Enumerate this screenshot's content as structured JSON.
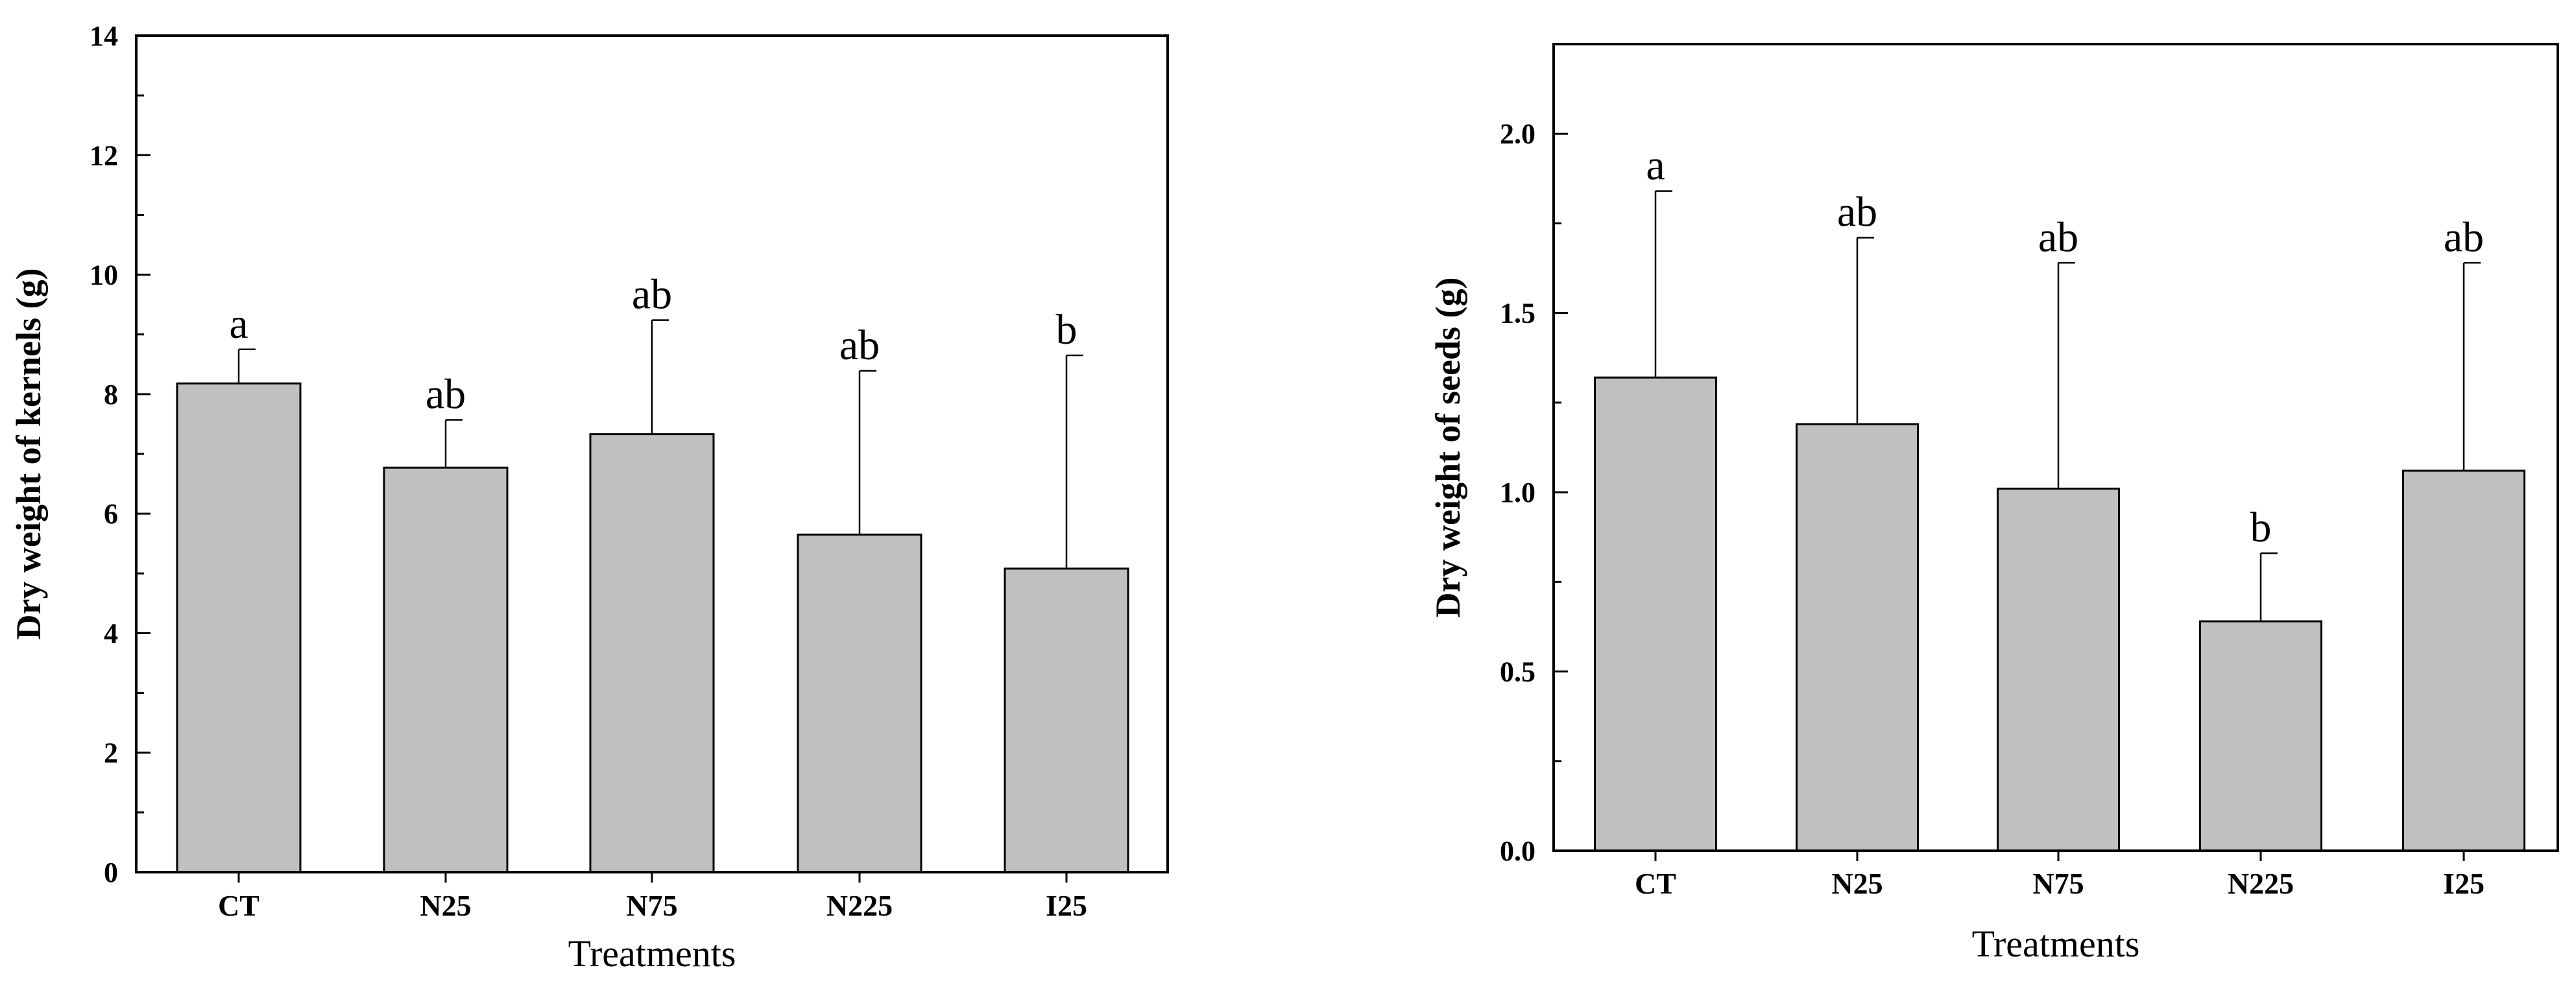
{
  "chart_data": [
    {
      "type": "bar",
      "categories": [
        "CT",
        "N25",
        "N75",
        "N225",
        "I25"
      ],
      "values": [
        8.18,
        6.77,
        7.33,
        5.65,
        5.08
      ],
      "error_upper": [
        8.75,
        7.57,
        9.24,
        8.39,
        8.65
      ],
      "significance": [
        "a",
        "ab",
        "ab",
        "ab",
        "b"
      ],
      "xlabel": "Treatments",
      "ylabel": "Dry weight of kernels (g)",
      "ylim": [
        0,
        14
      ],
      "yticks": [
        0,
        2,
        4,
        6,
        8,
        10,
        12,
        14
      ],
      "ytick_labels": [
        "0",
        "2",
        "4",
        "6",
        "8",
        "10",
        "12",
        "14"
      ],
      "minor_ticks": true,
      "grid": false,
      "bar_color": "#c0c0c0"
    },
    {
      "type": "bar",
      "categories": [
        "CT",
        "N25",
        "N75",
        "N225",
        "I25"
      ],
      "values": [
        1.32,
        1.19,
        1.01,
        0.64,
        1.06
      ],
      "error_upper": [
        1.84,
        1.71,
        1.64,
        0.83,
        1.64
      ],
      "significance": [
        "a",
        "ab",
        "ab",
        "b",
        "ab"
      ],
      "xlabel": "Treatments",
      "ylabel": "Dry weight of seeds (g)",
      "ylim": [
        0,
        2.25
      ],
      "yticks": [
        0,
        0.5,
        1.0,
        1.5,
        2.0
      ],
      "ytick_labels": [
        "0.0",
        "0.5",
        "1.0",
        "1.5",
        "2.0"
      ],
      "minor_ticks": true,
      "grid": false,
      "bar_color": "#c0c0c0"
    }
  ]
}
